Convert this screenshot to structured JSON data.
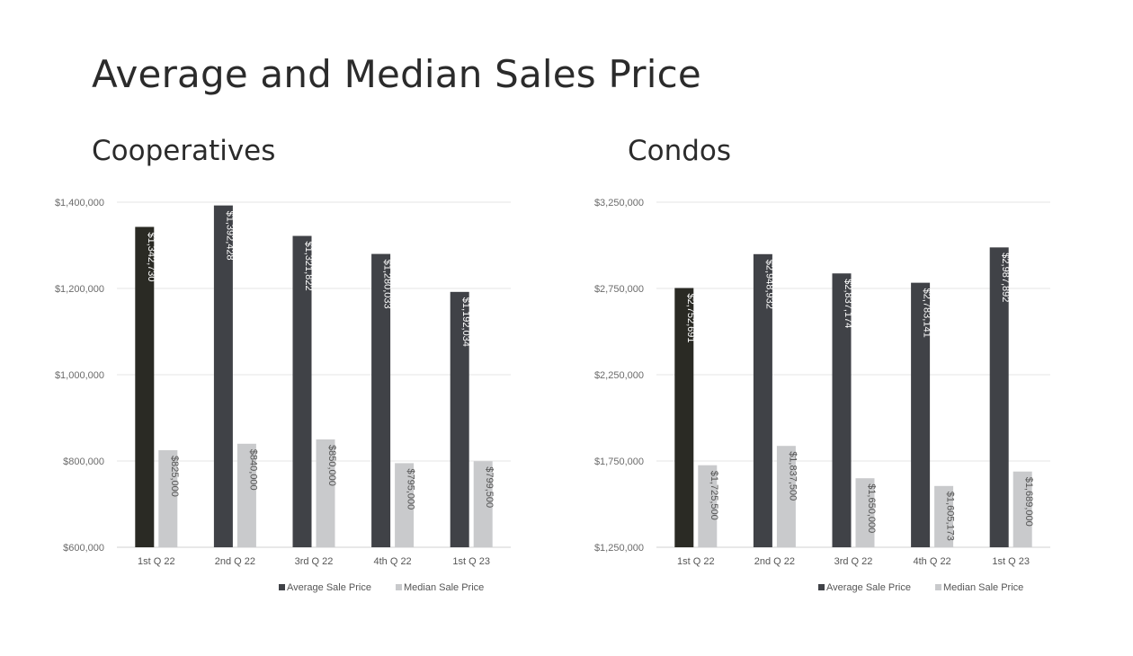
{
  "title": "Average and Median Sales Price",
  "colors": {
    "average": "#404247",
    "average_first": "#2a2a24",
    "median": "#c9cacc",
    "grid": "#e6e6e6"
  },
  "chart_data": [
    {
      "type": "bar",
      "title": "Cooperatives",
      "categories": [
        "1st Q 22",
        "2nd Q 22",
        "3rd Q 22",
        "4th Q 22",
        "1st Q 23"
      ],
      "ylim": [
        600000,
        1400000
      ],
      "yticks": [
        600000,
        800000,
        1000000,
        1200000,
        1400000
      ],
      "ytick_labels": [
        "$600,000",
        "$800,000",
        "$1,000,000",
        "$1,200,000",
        "$1,400,000"
      ],
      "grid": true,
      "legend_placement": "bottom-right",
      "series": [
        {
          "name": "Average Sale Price",
          "values": [
            1342730,
            1392428,
            1321822,
            1280033,
            1192034
          ],
          "labels": [
            "$1,342,730",
            "$1,392,428",
            "$1,321,822",
            "$1,280,033",
            "$1,192,034"
          ]
        },
        {
          "name": "Median Sale Price",
          "values": [
            825000,
            840000,
            850000,
            795000,
            799500
          ],
          "labels": [
            "$825,000",
            "$840,000",
            "$850,000",
            "$795,000",
            "$799,500"
          ]
        }
      ]
    },
    {
      "type": "bar",
      "title": "Condos",
      "categories": [
        "1st Q 22",
        "2nd Q 22",
        "3rd Q 22",
        "4th Q 22",
        "1st Q 23"
      ],
      "ylim": [
        1250000,
        3250000
      ],
      "yticks": [
        1250000,
        1750000,
        2250000,
        2750000,
        3250000
      ],
      "ytick_labels": [
        "$1,250,000",
        "$1,750,000",
        "$2,250,000",
        "$2,750,000",
        "$3,250,000"
      ],
      "grid": true,
      "legend_placement": "bottom-right",
      "series": [
        {
          "name": "Average Sale Price",
          "values": [
            2752691,
            2948932,
            2837174,
            2783141,
            2987892
          ],
          "labels": [
            "$2,752,691",
            "$2,948,932",
            "$2,837,174",
            "$2,783,141",
            "$2,987,892"
          ]
        },
        {
          "name": "Median Sale Price",
          "values": [
            1725500,
            1837500,
            1650000,
            1605173,
            1689000
          ],
          "labels": [
            "$1,725,500",
            "$1,837,500",
            "$1,650,000",
            "$1,605,173",
            "$1,689,000"
          ]
        }
      ]
    }
  ]
}
